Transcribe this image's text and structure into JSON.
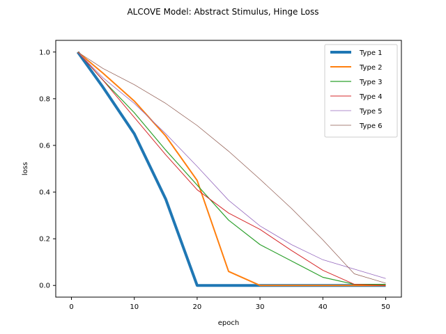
{
  "chart_data": {
    "type": "line",
    "title": "ALCOVE Model: Abstract Stimulus, Hinge Loss",
    "xlabel": "epoch",
    "ylabel": "loss",
    "xlim": [
      -2.5,
      52.5
    ],
    "ylim": [
      -0.05,
      1.05
    ],
    "xticks": [
      0,
      10,
      20,
      30,
      40,
      50
    ],
    "xtick_labels": [
      "0",
      "10",
      "20",
      "30",
      "40",
      "50"
    ],
    "yticks": [
      0.0,
      0.2,
      0.4,
      0.6,
      0.8,
      1.0
    ],
    "ytick_labels": [
      "0.0",
      "0.2",
      "0.4",
      "0.6",
      "0.8",
      "1.0"
    ],
    "grid": false,
    "legend_position": "top-right",
    "x": [
      1,
      5,
      10,
      15,
      20,
      25,
      30,
      35,
      40,
      45,
      50
    ],
    "series": [
      {
        "name": "Type 1",
        "color": "#1f77b4",
        "width": 4,
        "values": [
          1.0,
          0.85,
          0.65,
          0.37,
          0.0,
          0.0,
          0.0,
          0.0,
          0.0,
          0.0,
          0.0
        ]
      },
      {
        "name": "Type 2",
        "color": "#ff7f0e",
        "width": 2,
        "values": [
          1.0,
          0.91,
          0.79,
          0.64,
          0.45,
          0.06,
          0.0,
          0.0,
          0.0,
          0.0,
          0.0
        ]
      },
      {
        "name": "Type 3",
        "color": "#2ca02c",
        "width": 1.2,
        "values": [
          1.0,
          0.88,
          0.74,
          0.58,
          0.43,
          0.28,
          0.175,
          0.105,
          0.035,
          0.005,
          0.005
        ]
      },
      {
        "name": "Type 4",
        "color": "#d62728",
        "width": 1,
        "values": [
          1.0,
          0.88,
          0.72,
          0.56,
          0.41,
          0.31,
          0.24,
          0.15,
          0.065,
          0.005,
          0.0
        ]
      },
      {
        "name": "Type 5",
        "color": "#9467bd",
        "width": 0.8,
        "values": [
          1.0,
          0.89,
          0.78,
          0.65,
          0.51,
          0.365,
          0.255,
          0.175,
          0.11,
          0.07,
          0.03
        ]
      },
      {
        "name": "Type 6",
        "color": "#8c564b",
        "width": 0.7,
        "values": [
          1.0,
          0.93,
          0.86,
          0.78,
          0.685,
          0.575,
          0.455,
          0.33,
          0.195,
          0.05,
          0.01
        ]
      }
    ]
  }
}
